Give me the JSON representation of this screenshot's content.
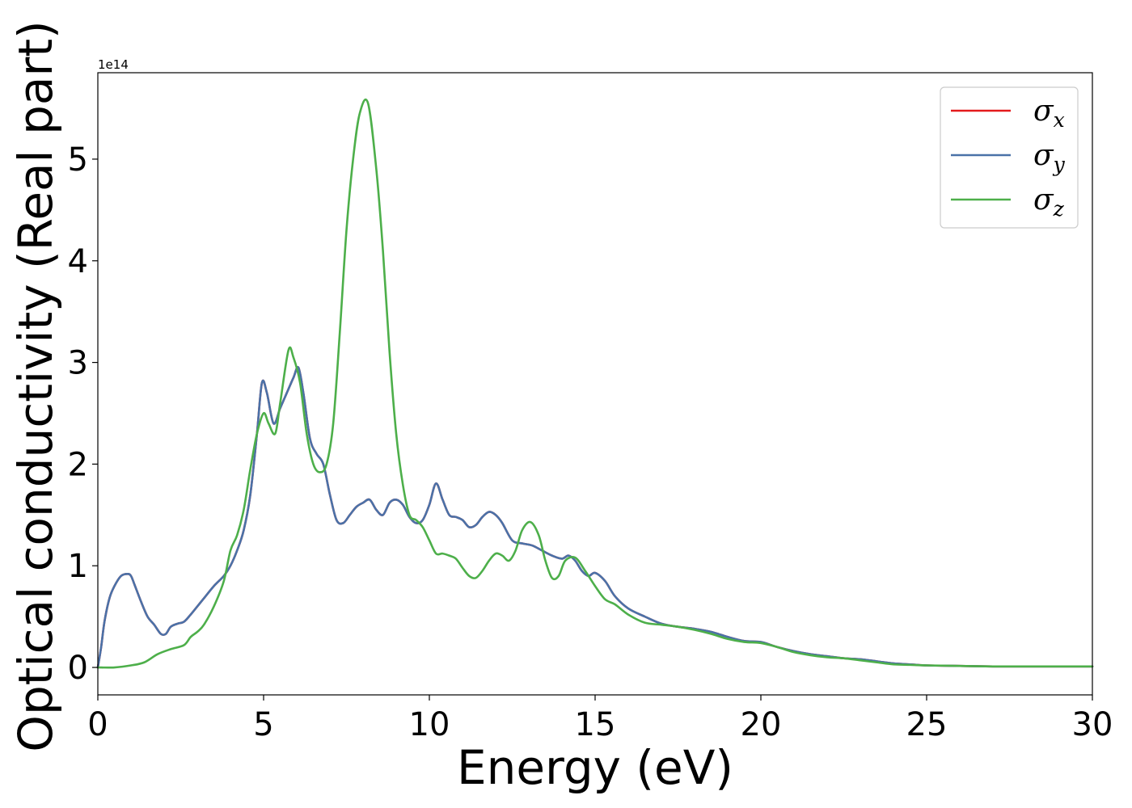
{
  "chart_data": {
    "type": "line",
    "title": "",
    "xlabel": "Energy (eV)",
    "ylabel": "Optical conductivity (Real part)",
    "y_offset_label": "1e14",
    "xlim": [
      0,
      30
    ],
    "ylim": [
      -0.27,
      5.85
    ],
    "xticks": [
      0,
      5,
      10,
      15,
      20,
      25,
      30
    ],
    "xtick_labels": [
      "0",
      "5",
      "10",
      "15",
      "20",
      "25",
      "30"
    ],
    "yticks": [
      0,
      1,
      2,
      3,
      4,
      5
    ],
    "ytick_labels": [
      "0",
      "1",
      "2",
      "3",
      "4",
      "5"
    ],
    "grid": false,
    "legend_position": "top-right",
    "series": [
      {
        "name": "σx",
        "legend_symbol": "σ",
        "legend_subscript": "x",
        "color": "#e41a1c",
        "x": [
          0,
          0.1,
          0.2,
          0.35,
          0.5,
          0.7,
          0.9,
          1.0,
          1.1,
          1.3,
          1.5,
          1.7,
          1.9,
          2.05,
          2.2,
          2.4,
          2.6,
          2.8,
          3.0,
          3.2,
          3.5,
          3.8,
          4.0,
          4.2,
          4.4,
          4.6,
          4.8,
          4.95,
          5.1,
          5.3,
          5.5,
          5.7,
          5.9,
          6.05,
          6.2,
          6.4,
          6.6,
          6.8,
          7.0,
          7.2,
          7.4,
          7.6,
          7.8,
          8.0,
          8.2,
          8.4,
          8.6,
          8.8,
          9.0,
          9.2,
          9.4,
          9.6,
          9.8,
          10.0,
          10.2,
          10.4,
          10.6,
          10.8,
          11.0,
          11.2,
          11.4,
          11.6,
          11.8,
          12.0,
          12.2,
          12.5,
          12.8,
          13.1,
          13.4,
          13.7,
          14.0,
          14.2,
          14.4,
          14.6,
          14.8,
          15.0,
          15.3,
          15.6,
          16.0,
          16.5,
          17.0,
          17.5,
          18.0,
          18.5,
          19.0,
          19.5,
          20.0,
          20.5,
          21.0,
          21.5,
          22.0,
          22.5,
          23.0,
          23.5,
          24.0,
          24.5,
          25.0,
          26.0,
          27.0,
          28.0,
          29.0,
          30.0
        ],
        "values": [
          0.0,
          0.2,
          0.45,
          0.68,
          0.8,
          0.9,
          0.92,
          0.9,
          0.82,
          0.65,
          0.5,
          0.42,
          0.33,
          0.33,
          0.4,
          0.43,
          0.45,
          0.52,
          0.6,
          0.68,
          0.8,
          0.9,
          1.0,
          1.15,
          1.35,
          1.7,
          2.3,
          2.8,
          2.7,
          2.4,
          2.55,
          2.7,
          2.85,
          2.95,
          2.7,
          2.25,
          2.1,
          2.0,
          1.7,
          1.45,
          1.42,
          1.5,
          1.58,
          1.62,
          1.65,
          1.55,
          1.5,
          1.62,
          1.65,
          1.6,
          1.48,
          1.42,
          1.45,
          1.6,
          1.81,
          1.65,
          1.5,
          1.48,
          1.45,
          1.38,
          1.4,
          1.48,
          1.53,
          1.5,
          1.42,
          1.25,
          1.22,
          1.2,
          1.15,
          1.1,
          1.07,
          1.1,
          1.05,
          0.95,
          0.9,
          0.93,
          0.85,
          0.7,
          0.58,
          0.5,
          0.43,
          0.4,
          0.38,
          0.35,
          0.3,
          0.26,
          0.25,
          0.2,
          0.16,
          0.13,
          0.11,
          0.09,
          0.08,
          0.06,
          0.04,
          0.03,
          0.02,
          0.015,
          0.01,
          0.01,
          0.01,
          0.01
        ]
      },
      {
        "name": "σy",
        "legend_symbol": "σ",
        "legend_subscript": "y",
        "color": "#4a72a8",
        "x": [
          0,
          0.1,
          0.2,
          0.35,
          0.5,
          0.7,
          0.9,
          1.0,
          1.1,
          1.3,
          1.5,
          1.7,
          1.9,
          2.05,
          2.2,
          2.4,
          2.6,
          2.8,
          3.0,
          3.2,
          3.5,
          3.8,
          4.0,
          4.2,
          4.4,
          4.6,
          4.8,
          4.95,
          5.1,
          5.3,
          5.5,
          5.7,
          5.9,
          6.05,
          6.2,
          6.4,
          6.6,
          6.8,
          7.0,
          7.2,
          7.4,
          7.6,
          7.8,
          8.0,
          8.2,
          8.4,
          8.6,
          8.8,
          9.0,
          9.2,
          9.4,
          9.6,
          9.8,
          10.0,
          10.2,
          10.4,
          10.6,
          10.8,
          11.0,
          11.2,
          11.4,
          11.6,
          11.8,
          12.0,
          12.2,
          12.5,
          12.8,
          13.1,
          13.4,
          13.7,
          14.0,
          14.2,
          14.4,
          14.6,
          14.8,
          15.0,
          15.3,
          15.6,
          16.0,
          16.5,
          17.0,
          17.5,
          18.0,
          18.5,
          19.0,
          19.5,
          20.0,
          20.5,
          21.0,
          21.5,
          22.0,
          22.5,
          23.0,
          23.5,
          24.0,
          24.5,
          25.0,
          26.0,
          27.0,
          28.0,
          29.0,
          30.0
        ],
        "values": [
          0.0,
          0.2,
          0.45,
          0.68,
          0.8,
          0.9,
          0.92,
          0.9,
          0.82,
          0.65,
          0.5,
          0.42,
          0.33,
          0.33,
          0.4,
          0.43,
          0.45,
          0.52,
          0.6,
          0.68,
          0.8,
          0.9,
          1.0,
          1.15,
          1.35,
          1.7,
          2.3,
          2.8,
          2.7,
          2.4,
          2.55,
          2.7,
          2.85,
          2.95,
          2.7,
          2.25,
          2.1,
          2.0,
          1.7,
          1.45,
          1.42,
          1.5,
          1.58,
          1.62,
          1.65,
          1.55,
          1.5,
          1.62,
          1.65,
          1.6,
          1.48,
          1.42,
          1.45,
          1.6,
          1.81,
          1.65,
          1.5,
          1.48,
          1.45,
          1.38,
          1.4,
          1.48,
          1.53,
          1.5,
          1.42,
          1.25,
          1.22,
          1.2,
          1.15,
          1.1,
          1.07,
          1.1,
          1.05,
          0.95,
          0.9,
          0.93,
          0.85,
          0.7,
          0.58,
          0.5,
          0.43,
          0.4,
          0.38,
          0.35,
          0.3,
          0.26,
          0.25,
          0.2,
          0.16,
          0.13,
          0.11,
          0.09,
          0.08,
          0.06,
          0.04,
          0.03,
          0.02,
          0.015,
          0.01,
          0.01,
          0.01,
          0.01
        ]
      },
      {
        "name": "σz",
        "legend_symbol": "σ",
        "legend_subscript": "z",
        "color": "#4daf4a",
        "x": [
          0,
          0.5,
          1.0,
          1.4,
          1.8,
          2.2,
          2.6,
          2.8,
          3.0,
          3.2,
          3.5,
          3.8,
          4.0,
          4.2,
          4.4,
          4.6,
          4.8,
          5.0,
          5.15,
          5.35,
          5.5,
          5.75,
          5.9,
          6.1,
          6.3,
          6.5,
          6.7,
          6.9,
          7.1,
          7.3,
          7.5,
          7.7,
          7.9,
          8.15,
          8.4,
          8.6,
          8.8,
          9.0,
          9.2,
          9.4,
          9.6,
          9.8,
          10.0,
          10.2,
          10.4,
          10.6,
          10.8,
          11.0,
          11.2,
          11.4,
          11.6,
          11.8,
          12.0,
          12.2,
          12.4,
          12.6,
          12.8,
          13.05,
          13.3,
          13.5,
          13.7,
          13.9,
          14.1,
          14.4,
          14.7,
          15.0,
          15.3,
          15.6,
          16.0,
          16.5,
          17.0,
          17.5,
          18.0,
          18.5,
          19.0,
          19.5,
          20.0,
          20.5,
          21.0,
          21.5,
          22.0,
          22.5,
          23.0,
          23.5,
          24.0,
          24.5,
          25.0,
          26.0,
          27.0,
          28.0,
          29.0,
          30.0
        ],
        "values": [
          0.0,
          0.0,
          0.02,
          0.05,
          0.13,
          0.18,
          0.22,
          0.3,
          0.35,
          0.42,
          0.6,
          0.85,
          1.15,
          1.3,
          1.55,
          1.95,
          2.3,
          2.5,
          2.4,
          2.3,
          2.6,
          3.12,
          3.05,
          2.8,
          2.3,
          2.0,
          1.92,
          2.0,
          2.4,
          3.3,
          4.3,
          5.0,
          5.45,
          5.55,
          4.9,
          4.1,
          3.1,
          2.3,
          1.8,
          1.5,
          1.45,
          1.38,
          1.25,
          1.12,
          1.12,
          1.1,
          1.07,
          0.98,
          0.9,
          0.88,
          0.95,
          1.05,
          1.12,
          1.1,
          1.05,
          1.15,
          1.35,
          1.43,
          1.3,
          1.05,
          0.88,
          0.9,
          1.05,
          1.08,
          0.95,
          0.8,
          0.67,
          0.62,
          0.52,
          0.44,
          0.42,
          0.4,
          0.37,
          0.33,
          0.28,
          0.25,
          0.24,
          0.2,
          0.15,
          0.12,
          0.1,
          0.09,
          0.07,
          0.05,
          0.03,
          0.025,
          0.02,
          0.015,
          0.01,
          0.01,
          0.01,
          0.01
        ]
      }
    ]
  }
}
